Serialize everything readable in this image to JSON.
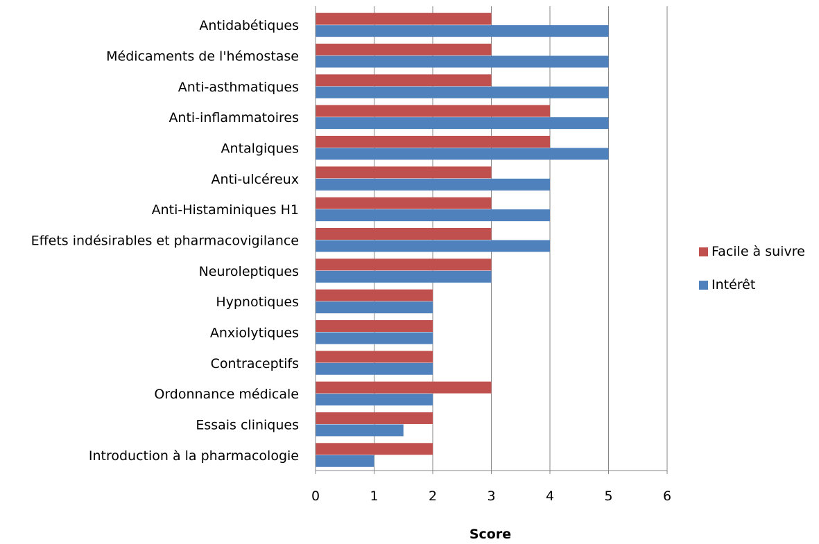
{
  "chart_data": {
    "type": "bar",
    "orientation": "horizontal",
    "categories": [
      "Antidabétiques",
      "Médicaments de l'hémostase",
      "Anti-asthmatiques",
      "Anti-inflammatoires",
      "Antalgiques",
      "Anti-ulcéreux",
      "Anti-Histaminiques H1",
      "Effets indésirables et pharmacovigilance",
      "Neuroleptiques",
      "Hypnotiques",
      "Anxiolytiques",
      "Contraceptifs",
      "Ordonnance médicale",
      "Essais cliniques",
      "Introduction à la pharmacologie"
    ],
    "series": [
      {
        "name": "Facile à suivre",
        "color": "#C0504D",
        "values": [
          3,
          3,
          3,
          4,
          4,
          3,
          3,
          3,
          3,
          2,
          2,
          2,
          3,
          2,
          2
        ]
      },
      {
        "name": "Intérêt",
        "color": "#4F81BD",
        "values": [
          5,
          5,
          5,
          5,
          5,
          4,
          4,
          4,
          3,
          2,
          2,
          2,
          2,
          1.5,
          1
        ]
      }
    ],
    "xlabel": "Score",
    "ylabel": "",
    "xlim": [
      0,
      6
    ],
    "xticks": [
      "0",
      "1",
      "2",
      "3",
      "4",
      "5",
      "6"
    ],
    "grid": true,
    "legend_position": "right",
    "legend_order": [
      "Facile à suivre",
      "Intérêt"
    ]
  }
}
